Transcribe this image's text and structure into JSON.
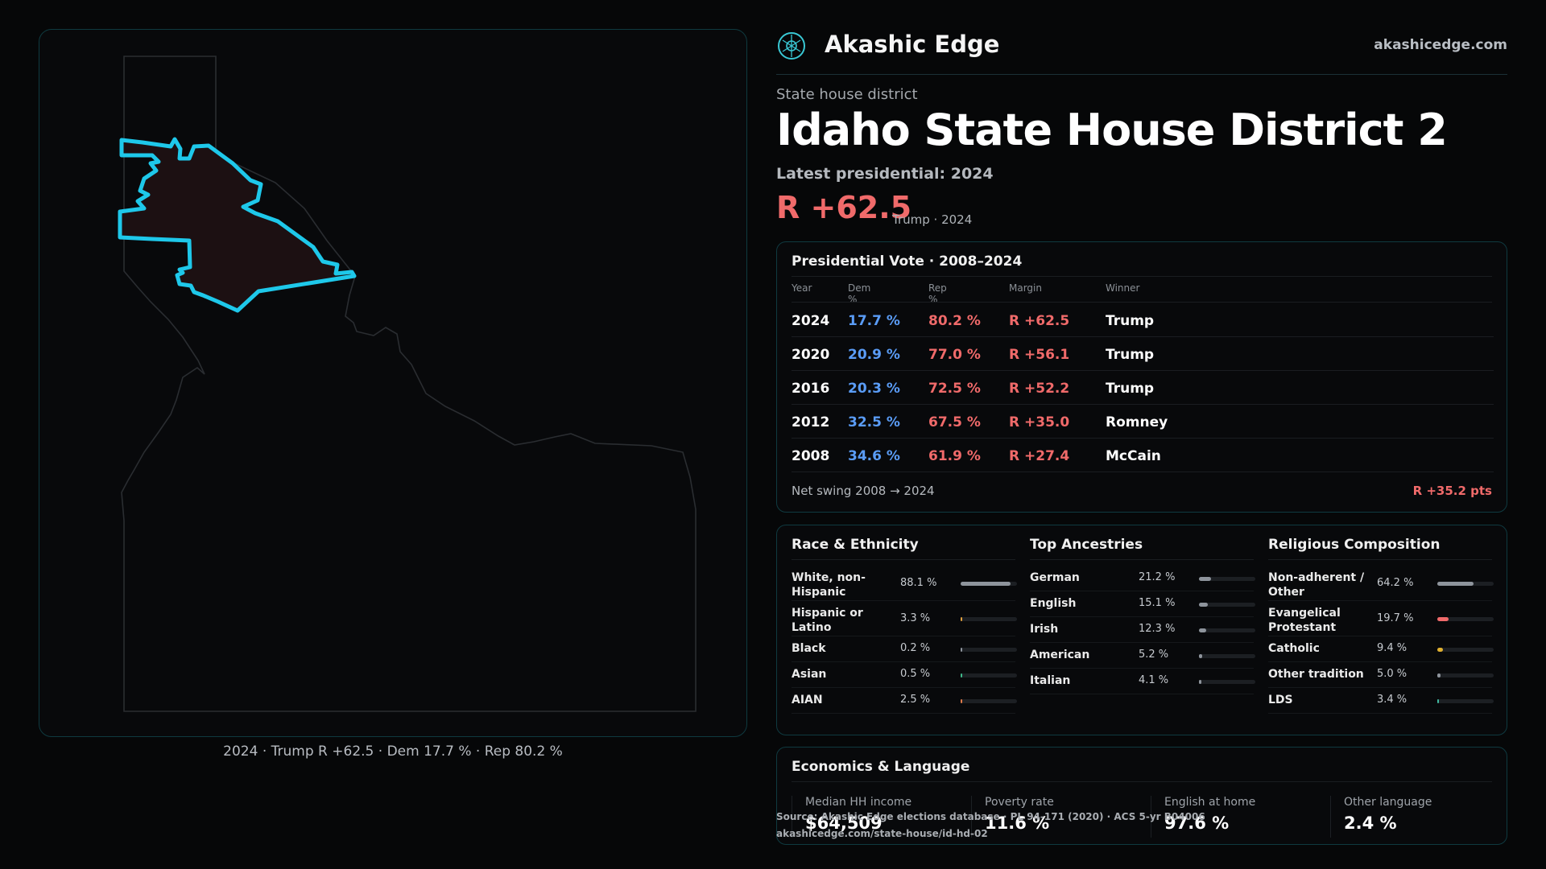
{
  "header": {
    "brand": "Akashic Edge",
    "site": "akashicedge.com",
    "logo_icon": "tree-of-life-icon"
  },
  "district": {
    "kicker": "State house district",
    "title": "Idaho State House District 2",
    "latest": "Latest presidential: 2024",
    "margin": "R +62.5",
    "margin_sub": "Trump · 2024"
  },
  "map": {
    "caption": "2024 · Trump R +62.5 · Dem 17.7 % · Rep 80.2 %",
    "highlight_color": "#1ec8ea",
    "fill_color": "#1c1012"
  },
  "vote": {
    "title": "Presidential Vote · 2008–2024",
    "headers": {
      "year": "Year",
      "dem": "Dem %",
      "rep": "Rep %",
      "margin": "Margin",
      "winner": "Winner"
    },
    "rows": [
      {
        "year": "2024",
        "dem": "17.7 %",
        "rep": "80.2 %",
        "margin": "R +62.5",
        "winner": "Trump"
      },
      {
        "year": "2020",
        "dem": "20.9 %",
        "rep": "77.0 %",
        "margin": "R +56.1",
        "winner": "Trump"
      },
      {
        "year": "2016",
        "dem": "20.3 %",
        "rep": "72.5 %",
        "margin": "R +52.2",
        "winner": "Trump"
      },
      {
        "year": "2012",
        "dem": "32.5 %",
        "rep": "67.5 %",
        "margin": "R +35.0",
        "winner": "Romney"
      },
      {
        "year": "2008",
        "dem": "34.6 %",
        "rep": "61.9 %",
        "margin": "R +27.4",
        "winner": "McCain"
      }
    ],
    "swing_label": "Net swing 2008 → 2024",
    "swing_value": "R +35.2 pts"
  },
  "race": {
    "title": "Race & Ethnicity",
    "items": [
      {
        "label": "White, non-Hispanic",
        "pct": "88.1 %",
        "value": 0.881,
        "color": "#8e949c"
      },
      {
        "label": "Hispanic or Latino",
        "pct": "3.3 %",
        "value": 0.033,
        "color": "#e0a040"
      },
      {
        "label": "Black",
        "pct": "0.2 %",
        "value": 0.002,
        "color": "#8e949c"
      },
      {
        "label": "Asian",
        "pct": "0.5 %",
        "value": 0.005,
        "color": "#3fb98a"
      },
      {
        "label": "AIAN",
        "pct": "2.5 %",
        "value": 0.025,
        "color": "#e07a4a"
      }
    ]
  },
  "ancestry": {
    "title": "Top Ancestries",
    "items": [
      {
        "label": "German",
        "pct": "21.2 %",
        "value": 0.212,
        "color": "#8e949c"
      },
      {
        "label": "English",
        "pct": "15.1 %",
        "value": 0.151,
        "color": "#8e949c"
      },
      {
        "label": "Irish",
        "pct": "12.3 %",
        "value": 0.123,
        "color": "#8e949c"
      },
      {
        "label": "American",
        "pct": "5.2 %",
        "value": 0.052,
        "color": "#8e949c"
      },
      {
        "label": "Italian",
        "pct": "4.1 %",
        "value": 0.041,
        "color": "#8e949c"
      }
    ]
  },
  "religion": {
    "title": "Religious Composition",
    "items": [
      {
        "label": "Non-adherent / Other",
        "pct": "64.2 %",
        "value": 0.642,
        "color": "#8e949c"
      },
      {
        "label": "Evangelical Protestant",
        "pct": "19.7 %",
        "value": 0.197,
        "color": "#f06a6a"
      },
      {
        "label": "Catholic",
        "pct": "9.4 %",
        "value": 0.094,
        "color": "#e0b030"
      },
      {
        "label": "Other tradition",
        "pct": "5.0 %",
        "value": 0.05,
        "color": "#8e949c"
      },
      {
        "label": "LDS",
        "pct": "3.4 %",
        "value": 0.034,
        "color": "#3fb9a0"
      }
    ]
  },
  "econ": {
    "title": "Economics & Language",
    "items": [
      {
        "label": "Median HH income",
        "value": "$64,509"
      },
      {
        "label": "Poverty rate",
        "value": "11.6 %"
      },
      {
        "label": "English at home",
        "value": "97.6 %"
      },
      {
        "label": "Other language",
        "value": "2.4 %"
      }
    ]
  },
  "source": {
    "line1": "Source: Akashic Edge elections database · PL 94-171 (2020) · ACS 5-yr B04006",
    "line2": "akashicedge.com/state-house/id-hd-02"
  }
}
